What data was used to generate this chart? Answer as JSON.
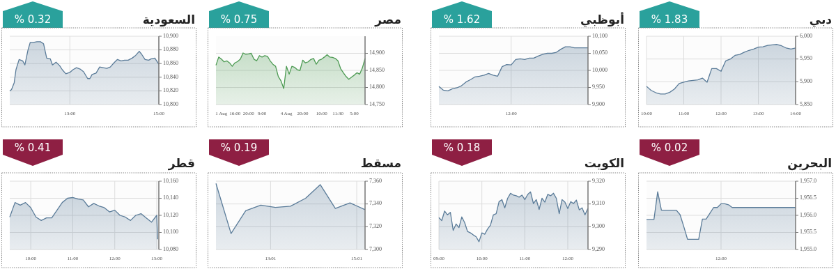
{
  "chart_data": [
    {
      "type": "area",
      "title": "السعودية",
      "annotations": [
        "% 0.32"
      ],
      "grid": true,
      "x": [
        11.65,
        11.69,
        11.75,
        11.79,
        11.86,
        11.94,
        11.99,
        12.06,
        12.11,
        12.18,
        12.26,
        12.34,
        12.41,
        12.48,
        12.56,
        12.61,
        12.69,
        12.77,
        12.83,
        12.91,
        13.0,
        13.07,
        13.15,
        13.23,
        13.31,
        13.4,
        13.45,
        13.5,
        13.59,
        13.67,
        13.75,
        13.83,
        13.91,
        13.99,
        14.07,
        14.15,
        14.23,
        14.31,
        14.4,
        14.48,
        14.56,
        14.61,
        14.69,
        14.77,
        14.83,
        14.91,
        15.0
      ],
      "xlim": [
        11.65,
        15.0
      ],
      "xticks": [
        {
          "value": 13,
          "label": "13:00"
        },
        {
          "value": 15,
          "label": "15:00"
        }
      ],
      "ylim": [
        10800,
        10900
      ],
      "yticks": [
        {
          "value": 10800,
          "label": "10,800"
        },
        {
          "value": 10820,
          "label": "10,820"
        },
        {
          "value": 10840,
          "label": "10,840"
        },
        {
          "value": 10860,
          "label": "10,860"
        },
        {
          "value": 10880,
          "label": "10,880"
        },
        {
          "value": 10900,
          "label": "10,900"
        }
      ],
      "series": [
        {
          "color": "#5b7c99",
          "values": [
            10820,
            10822,
            10832,
            10851,
            10866,
            10864,
            10858,
            10880,
            10891,
            10891,
            10892,
            10892,
            10889,
            10868,
            10867,
            10858,
            10862,
            10857,
            10851,
            10845,
            10847,
            10851,
            10854,
            10852,
            10848,
            10838,
            10838,
            10844,
            10846,
            10855,
            10854,
            10853,
            10855,
            10861,
            10866,
            10864,
            10865,
            10865,
            10868,
            10872,
            10878,
            10874,
            10866,
            10865,
            10867,
            10868,
            10859
          ]
        }
      ]
    },
    {
      "type": "area",
      "title": "مصر",
      "annotations": [
        "% 0.75"
      ],
      "grid": "y",
      "categories": [
        null,
        null,
        "1 Aug",
        null,
        null,
        null,
        null,
        "16:00",
        null,
        null,
        null,
        null,
        "20:00",
        null,
        null,
        null,
        null,
        "9:00",
        null,
        null,
        null,
        null,
        null,
        null,
        null,
        null,
        "4 Aug",
        null,
        null,
        null,
        null,
        null,
        "20:00",
        null,
        null,
        null,
        null,
        null,
        null,
        "10:00",
        null,
        null,
        null,
        null,
        null,
        "11:30",
        null,
        null,
        null,
        null,
        null,
        "5:00",
        null,
        null,
        null,
        null
      ],
      "ylim": [
        14750,
        14950
      ],
      "yticks": [
        {
          "value": 14750,
          "label": "14,750"
        },
        {
          "value": 14800,
          "label": "14,800"
        },
        {
          "value": 14850,
          "label": "14,850"
        },
        {
          "value": 14900,
          "label": "14,900"
        }
      ],
      "series": [
        {
          "color": "#4c9a52",
          "values": [
            14865,
            14889,
            14883,
            14875,
            14878,
            14872,
            14862,
            14872,
            14876,
            14883,
            14901,
            14897,
            14898,
            14900,
            14883,
            14878,
            14893,
            14889,
            14893,
            14891,
            14878,
            14868,
            14862,
            14832,
            14819,
            14797,
            14862,
            14839,
            14862,
            14859,
            14852,
            14850,
            14880,
            14872,
            14875,
            14882,
            14885,
            14868,
            14880,
            14883,
            14889,
            14896,
            14889,
            14888,
            14885,
            14878,
            14855,
            14843,
            14832,
            14824,
            14830,
            14836,
            14843,
            14839,
            14857,
            14885
          ]
        }
      ]
    },
    {
      "type": "area",
      "title": "أبوظبي",
      "annotations": [
        "% 1.62"
      ],
      "grid": true,
      "categories": [
        null,
        null,
        null,
        null,
        null,
        null,
        null,
        null,
        null,
        null,
        null,
        null,
        null,
        null,
        null,
        null,
        "12:00",
        null,
        null,
        null,
        null,
        null,
        null,
        null,
        null,
        null,
        null,
        null,
        null,
        null,
        null,
        null,
        null,
        null
      ],
      "ylim": [
        9900,
        10100
      ],
      "yticks": [
        {
          "value": 9900,
          "label": "9,900"
        },
        {
          "value": 9950,
          "label": "9,950"
        },
        {
          "value": 10000,
          "label": "10,000"
        },
        {
          "value": 10050,
          "label": "10,050"
        },
        {
          "value": 10100,
          "label": "10,100"
        }
      ],
      "series": [
        {
          "color": "#5b7c99",
          "values": [
            9953,
            9942,
            9940,
            9946,
            9949,
            9955,
            9966,
            9973,
            9981,
            9983,
            9986,
            9991,
            9986,
            9983,
            10011,
            10017,
            10016,
            10032,
            10034,
            10032,
            10036,
            10036,
            10042,
            10047,
            10050,
            10050,
            10053,
            10062,
            10069,
            10069,
            10066,
            10066,
            10066,
            10066
          ]
        }
      ]
    },
    {
      "type": "area",
      "title": "دبي",
      "annotations": [
        "% 1.83"
      ],
      "grid": true,
      "x": [
        10,
        10.125,
        10.25,
        10.375,
        10.5,
        10.625,
        10.75,
        10.875,
        11,
        11.125,
        11.25,
        11.375,
        11.5,
        11.625,
        11.75,
        11.875,
        12,
        12.125,
        12.25,
        12.375,
        12.5,
        12.625,
        12.75,
        12.875,
        13,
        13.125,
        13.25,
        13.375,
        13.5,
        13.625,
        13.75,
        13.875,
        14
      ],
      "xlim": [
        10,
        14
      ],
      "xticks": [
        {
          "value": 10,
          "label": "10:00"
        },
        {
          "value": 11,
          "label": "11:00"
        },
        {
          "value": 12,
          "label": "12:00"
        },
        {
          "value": 13,
          "label": "13:00"
        },
        {
          "value": 14,
          "label": "14:00"
        }
      ],
      "ylim": [
        5850,
        6000
      ],
      "yticks": [
        {
          "value": 5850,
          "label": "5,850"
        },
        {
          "value": 5900,
          "label": "5,900"
        },
        {
          "value": 5950,
          "label": "5,950"
        },
        {
          "value": 6000,
          "label": "6,000"
        }
      ],
      "series": [
        {
          "color": "#5b7c99",
          "values": [
            5890,
            5881,
            5876,
            5873,
            5873,
            5877,
            5884,
            5896,
            5899,
            5902,
            5903,
            5904,
            5908,
            5899,
            5929,
            5929,
            5923,
            5946,
            5950,
            5958,
            5960,
            5965,
            5969,
            5972,
            5976,
            5977,
            5980,
            5981,
            5982,
            5979,
            5974,
            5972,
            5974
          ]
        }
      ]
    },
    {
      "type": "area",
      "title": "قطر",
      "annotations": [
        "% 0.41"
      ],
      "grid": true,
      "x": [
        9.5,
        9.625,
        9.75,
        9.875,
        10,
        10.125,
        10.25,
        10.375,
        10.5,
        10.625,
        10.75,
        10.875,
        11,
        11.125,
        11.25,
        11.375,
        11.5,
        11.625,
        11.75,
        11.875,
        12,
        12.125,
        12.25,
        12.375,
        12.5,
        12.625,
        12.75,
        12.875,
        13,
        13.02
      ],
      "xlim": [
        9.5,
        13.05
      ],
      "xticks": [
        {
          "value": 10,
          "label": "10:00"
        },
        {
          "value": 11,
          "label": "11:00"
        },
        {
          "value": 12,
          "label": "12:00"
        },
        {
          "value": 13,
          "label": "13:00"
        }
      ],
      "ylim": [
        10080,
        10160
      ],
      "yticks": [
        {
          "value": 10080,
          "label": "10,080"
        },
        {
          "value": 10100,
          "label": "10,100"
        },
        {
          "value": 10120,
          "label": "10,120"
        },
        {
          "value": 10140,
          "label": "10,140"
        },
        {
          "value": 10160,
          "label": "10,160"
        }
      ],
      "series": [
        {
          "color": "#5b7c99",
          "values": [
            10118,
            10135,
            10132,
            10135,
            10129,
            10118,
            10114,
            10117,
            10117,
            10126,
            10135,
            10140,
            10141,
            10139,
            10138,
            10130,
            10134,
            10131,
            10129,
            10124,
            10126,
            10120,
            10118,
            10114,
            10120,
            10122,
            10117,
            10112,
            10120,
            10092
          ]
        }
      ]
    },
    {
      "type": "area",
      "title": "مسقط",
      "annotations": [
        "% 0.19"
      ],
      "grid": true,
      "x": [
        11.75,
        12.1,
        12.44,
        12.79,
        13.13,
        13.48,
        13.83,
        14.17,
        14.52,
        14.86,
        15.21
      ],
      "xlim": [
        11.75,
        15.21
      ],
      "xticks": [
        {
          "value": 13.017,
          "label": "13:01"
        },
        {
          "value": 15.017,
          "label": "15:01"
        }
      ],
      "ylim": [
        7300,
        7360
      ],
      "yticks": [
        {
          "value": 7300,
          "label": "7,300"
        },
        {
          "value": 7320,
          "label": "7,320"
        },
        {
          "value": 7340,
          "label": "7,340"
        },
        {
          "value": 7360,
          "label": "7,360"
        }
      ],
      "series": [
        {
          "color": "#5b7c99",
          "values": [
            7358,
            7314,
            7334,
            7339,
            7337,
            7338,
            7345,
            7357,
            7336,
            7341,
            7335
          ]
        }
      ]
    },
    {
      "type": "area",
      "title": "الكويت",
      "annotations": [
        "% 0.18"
      ],
      "grid": true,
      "x": [
        9,
        9.067,
        9.133,
        9.2,
        9.267,
        9.333,
        9.4,
        9.467,
        9.533,
        9.6,
        9.667,
        9.733,
        9.8,
        9.867,
        9.933,
        10,
        10.067,
        10.133,
        10.2,
        10.267,
        10.333,
        10.4,
        10.467,
        10.533,
        10.6,
        10.667,
        10.733,
        10.8,
        10.867,
        10.933,
        11,
        11.067,
        11.133,
        11.2,
        11.267,
        11.333,
        11.4,
        11.467,
        11.533,
        11.6,
        11.667,
        11.733,
        11.8,
        11.867,
        11.933,
        12,
        12.067,
        12.133,
        12.2,
        12.267,
        12.333,
        12.4,
        12.467
      ],
      "xlim": [
        9,
        12.47
      ],
      "xticks": [
        {
          "value": 9,
          "label": "09:00"
        },
        {
          "value": 10,
          "label": "10:00"
        },
        {
          "value": 11,
          "label": "11:00"
        },
        {
          "value": 12,
          "label": "12:00"
        }
      ],
      "ylim": [
        9290,
        9320
      ],
      "yticks": [
        {
          "value": 9290,
          "label": "9,290"
        },
        {
          "value": 9300,
          "label": "9,300"
        },
        {
          "value": 9310,
          "label": "9,310"
        },
        {
          "value": 9320,
          "label": "9,320"
        }
      ],
      "series": [
        {
          "color": "#5b7c99",
          "values": [
            9304.0,
            9302.7,
            9306.9,
            9305.2,
            9306.3,
            9298.4,
            9301.2,
            9299.6,
            9304.3,
            9301.8,
            9297.9,
            9297.3,
            9296.4,
            9295.6,
            9293.4,
            9297.3,
            9296.7,
            9299.0,
            9300.7,
            9305.2,
            9305.7,
            9311.0,
            9311.9,
            9308.3,
            9312.5,
            9314.7,
            9313.9,
            9313.6,
            9313.0,
            9313.9,
            9311.9,
            9314.2,
            9315.3,
            9310.2,
            9311.9,
            9307.6,
            9312.5,
            9310.8,
            9314.2,
            9313.6,
            9314.7,
            9312.5,
            9305.7,
            9311.9,
            9310.8,
            9308.0,
            9311.0,
            9310.2,
            9311.7,
            9307.4,
            9308.3,
            9305.2,
            9308.0
          ]
        }
      ]
    },
    {
      "type": "area",
      "title": "البحرين",
      "annotations": [
        "% 0.02"
      ],
      "grid": true,
      "categories": [
        null,
        null,
        null,
        null,
        null,
        null,
        null,
        null,
        null,
        null,
        null,
        null,
        null,
        null,
        null,
        null,
        null,
        null,
        null,
        null,
        "12:00",
        null,
        null,
        null,
        null,
        null,
        null,
        null,
        null,
        null,
        null,
        null,
        null,
        null,
        null,
        null,
        null,
        null,
        null,
        null,
        null
      ],
      "ylim": [
        1955,
        1957
      ],
      "yticks": [
        {
          "value": 1955,
          "label": "1,955.0"
        },
        {
          "value": 1955.5,
          "label": "1,955.5"
        },
        {
          "value": 1956,
          "label": "1,956.0"
        },
        {
          "value": 1956.5,
          "label": "1,956.5"
        },
        {
          "value": 1957,
          "label": "1,957.0"
        }
      ],
      "series": [
        {
          "color": "#5b7c99",
          "values": [
            1955.88,
            1955.88,
            1955.88,
            1956.69,
            1956.15,
            1956.15,
            1956.15,
            1956.15,
            1956.15,
            1956.02,
            1955.67,
            1955.3,
            1955.3,
            1955.3,
            1955.3,
            1955.89,
            1955.89,
            1956.06,
            1956.23,
            1956.23,
            1956.34,
            1956.34,
            1956.31,
            1956.23,
            1956.23,
            1956.23,
            1956.23,
            1956.23,
            1956.23,
            1956.23,
            1956.23,
            1956.23,
            1956.23,
            1956.23,
            1956.23,
            1956.23,
            1956.23,
            1956.23,
            1956.23,
            1956.23,
            1956.23
          ]
        }
      ]
    }
  ]
}
